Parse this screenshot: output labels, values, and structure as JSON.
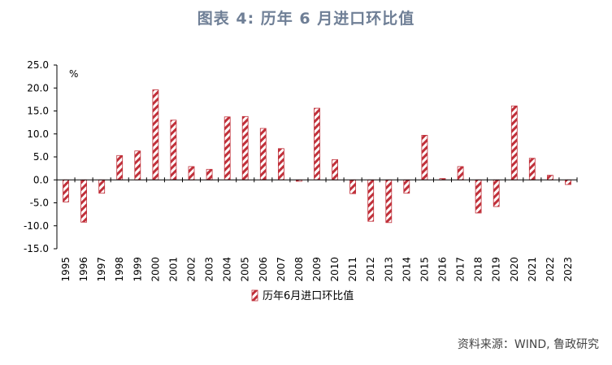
{
  "page": {
    "title": "图表 4:  历年 6 月进口环比值",
    "source": "资料来源：WIND, 鲁政研究"
  },
  "colors": {
    "bar_stripe": "#c0303a",
    "title": "#6f7f96",
    "axis": "#000000"
  },
  "chart_data": {
    "type": "bar",
    "title": "图表 4:  历年 6 月进口环比值",
    "unit_label": "%",
    "categories": [
      "1995",
      "1996",
      "1997",
      "1998",
      "1999",
      "2000",
      "2001",
      "2002",
      "2003",
      "2004",
      "2005",
      "2006",
      "2007",
      "2008",
      "2009",
      "2010",
      "2011",
      "2012",
      "2013",
      "2014",
      "2015",
      "2016",
      "2017",
      "2018",
      "2019",
      "2020",
      "2021",
      "2022",
      "2023"
    ],
    "series": [
      {
        "name": "历年6月进口环比值",
        "values": [
          -4.8,
          -9.2,
          -2.9,
          5.3,
          6.3,
          19.6,
          13.0,
          2.9,
          2.3,
          13.7,
          13.8,
          11.2,
          6.8,
          -0.3,
          15.6,
          4.4,
          -3.0,
          -9.0,
          -9.3,
          -2.9,
          9.7,
          0.3,
          2.9,
          -7.2,
          -5.8,
          16.1,
          4.7,
          1.0,
          -1.0
        ]
      }
    ],
    "ylim": [
      -15,
      25
    ],
    "yticks": [
      "25.0",
      "20.0",
      "15.0",
      "10.0",
      "5.0",
      "0.0",
      "-5.0",
      "-10.0",
      "-15.0"
    ],
    "yticks_values": [
      25,
      20,
      15,
      10,
      5,
      0,
      -5,
      -10,
      -15
    ],
    "legend_position": "bottom-center",
    "grid": false
  }
}
